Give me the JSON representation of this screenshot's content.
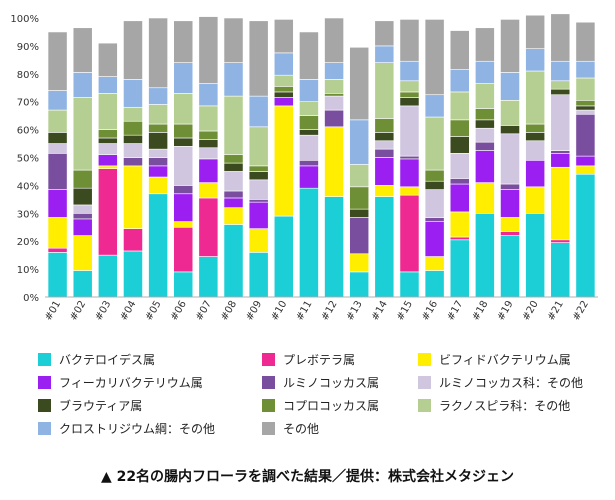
{
  "chart_data": {
    "type": "bar",
    "stacked": true,
    "categories": [
      "#01",
      "#02",
      "#03",
      "#04",
      "#05",
      "#06",
      "#07",
      "#08",
      "#09",
      "#10",
      "#11",
      "#12",
      "#13",
      "#14",
      "#15",
      "#16",
      "#17",
      "#18",
      "#19",
      "#20",
      "#21",
      "#22"
    ],
    "ylim": [
      0,
      100
    ],
    "yticks": [
      "0%",
      "10%",
      "20%",
      "30%",
      "40%",
      "50%",
      "60%",
      "70%",
      "80%",
      "90%",
      "100%"
    ],
    "grid": false,
    "legend_position": "bottom",
    "series": [
      {
        "name": "バクテロイデス属",
        "color": "#1ccfd6",
        "values": [
          16,
          9.5,
          15,
          16.5,
          37,
          9,
          14.5,
          26,
          16,
          29,
          39,
          36,
          9,
          36,
          9,
          9.5,
          20.5,
          30,
          22,
          30,
          19.5,
          44
        ]
      },
      {
        "name": "プレボテラ属",
        "color": "#ee2a92",
        "values": [
          1.5,
          0,
          31,
          8,
          0,
          16,
          21,
          0,
          0,
          0,
          0,
          0,
          0,
          0,
          27.5,
          0,
          1,
          0,
          1.5,
          0,
          1,
          0
        ]
      },
      {
        "name": "ビフィドバクテリウム属",
        "color": "#ffee00",
        "values": [
          11,
          12.5,
          1,
          22.5,
          6,
          2,
          5.5,
          6,
          8.5,
          39.5,
          0,
          25,
          6.5,
          4,
          3,
          5,
          9,
          11,
          5,
          9.5,
          26,
          3
        ]
      },
      {
        "name": "フィーカリバクテリウム属",
        "color": "#9a1ff0",
        "values": [
          10,
          6,
          4,
          0,
          4,
          10,
          8.5,
          3.5,
          9.5,
          3,
          8,
          0,
          0,
          10,
          10,
          12.5,
          10,
          11.5,
          10,
          9.5,
          5,
          3.5
        ]
      },
      {
        "name": "ルミノコッカス属",
        "color": "#7a4e9f",
        "values": [
          13,
          2,
          0,
          3,
          3,
          3,
          0,
          2.5,
          1,
          0,
          2,
          6,
          13,
          3,
          1,
          1.5,
          2,
          3,
          2,
          0,
          1,
          15
        ]
      },
      {
        "name": "ルミノコッカス科：その他",
        "color": "#d0c6e0",
        "values": [
          3.5,
          3,
          4,
          5,
          3,
          14,
          4,
          7,
          7,
          0,
          9,
          5,
          0,
          3,
          18,
          10,
          9,
          5,
          18,
          7,
          20,
          1.5
        ]
      },
      {
        "name": "ブラウティア属",
        "color": "#3b4a1f",
        "values": [
          4,
          6,
          2,
          3,
          6,
          3,
          3,
          3,
          3,
          2,
          2,
          0,
          3,
          3,
          3,
          3,
          6,
          3,
          3,
          3,
          2,
          1.5
        ]
      },
      {
        "name": "コプロコッカス属",
        "color": "#6f8f36",
        "values": [
          0,
          6.5,
          3,
          5,
          3,
          5,
          3,
          3,
          2,
          2,
          5,
          1,
          8,
          5,
          2,
          4,
          6,
          4,
          0,
          3,
          0,
          2
        ]
      },
      {
        "name": "ラクノスピラ科：その他",
        "color": "#b5cf92",
        "values": [
          8,
          26,
          13,
          5,
          7,
          11,
          9,
          21,
          14,
          4,
          5,
          5,
          8,
          20,
          4,
          19,
          10,
          9,
          9,
          19,
          3,
          8
        ]
      },
      {
        "name": "クロストリジウム綱：その他",
        "color": "#8fb4e3",
        "values": [
          7,
          9,
          6,
          10,
          6,
          11,
          8,
          12,
          11,
          8,
          8,
          6,
          16,
          6,
          7,
          8,
          8,
          8,
          10,
          8,
          7,
          6
        ]
      },
      {
        "name": "その他",
        "color": "#a6a6a6",
        "values": [
          21,
          16,
          12,
          21,
          25,
          15,
          24,
          16,
          27,
          12,
          17,
          16,
          26,
          9,
          15,
          27,
          14,
          12,
          19,
          12,
          17,
          14
        ]
      }
    ]
  },
  "caption": "▲ 22名の腸内フローラを調べた結果／提供：株式会社メタジェン"
}
